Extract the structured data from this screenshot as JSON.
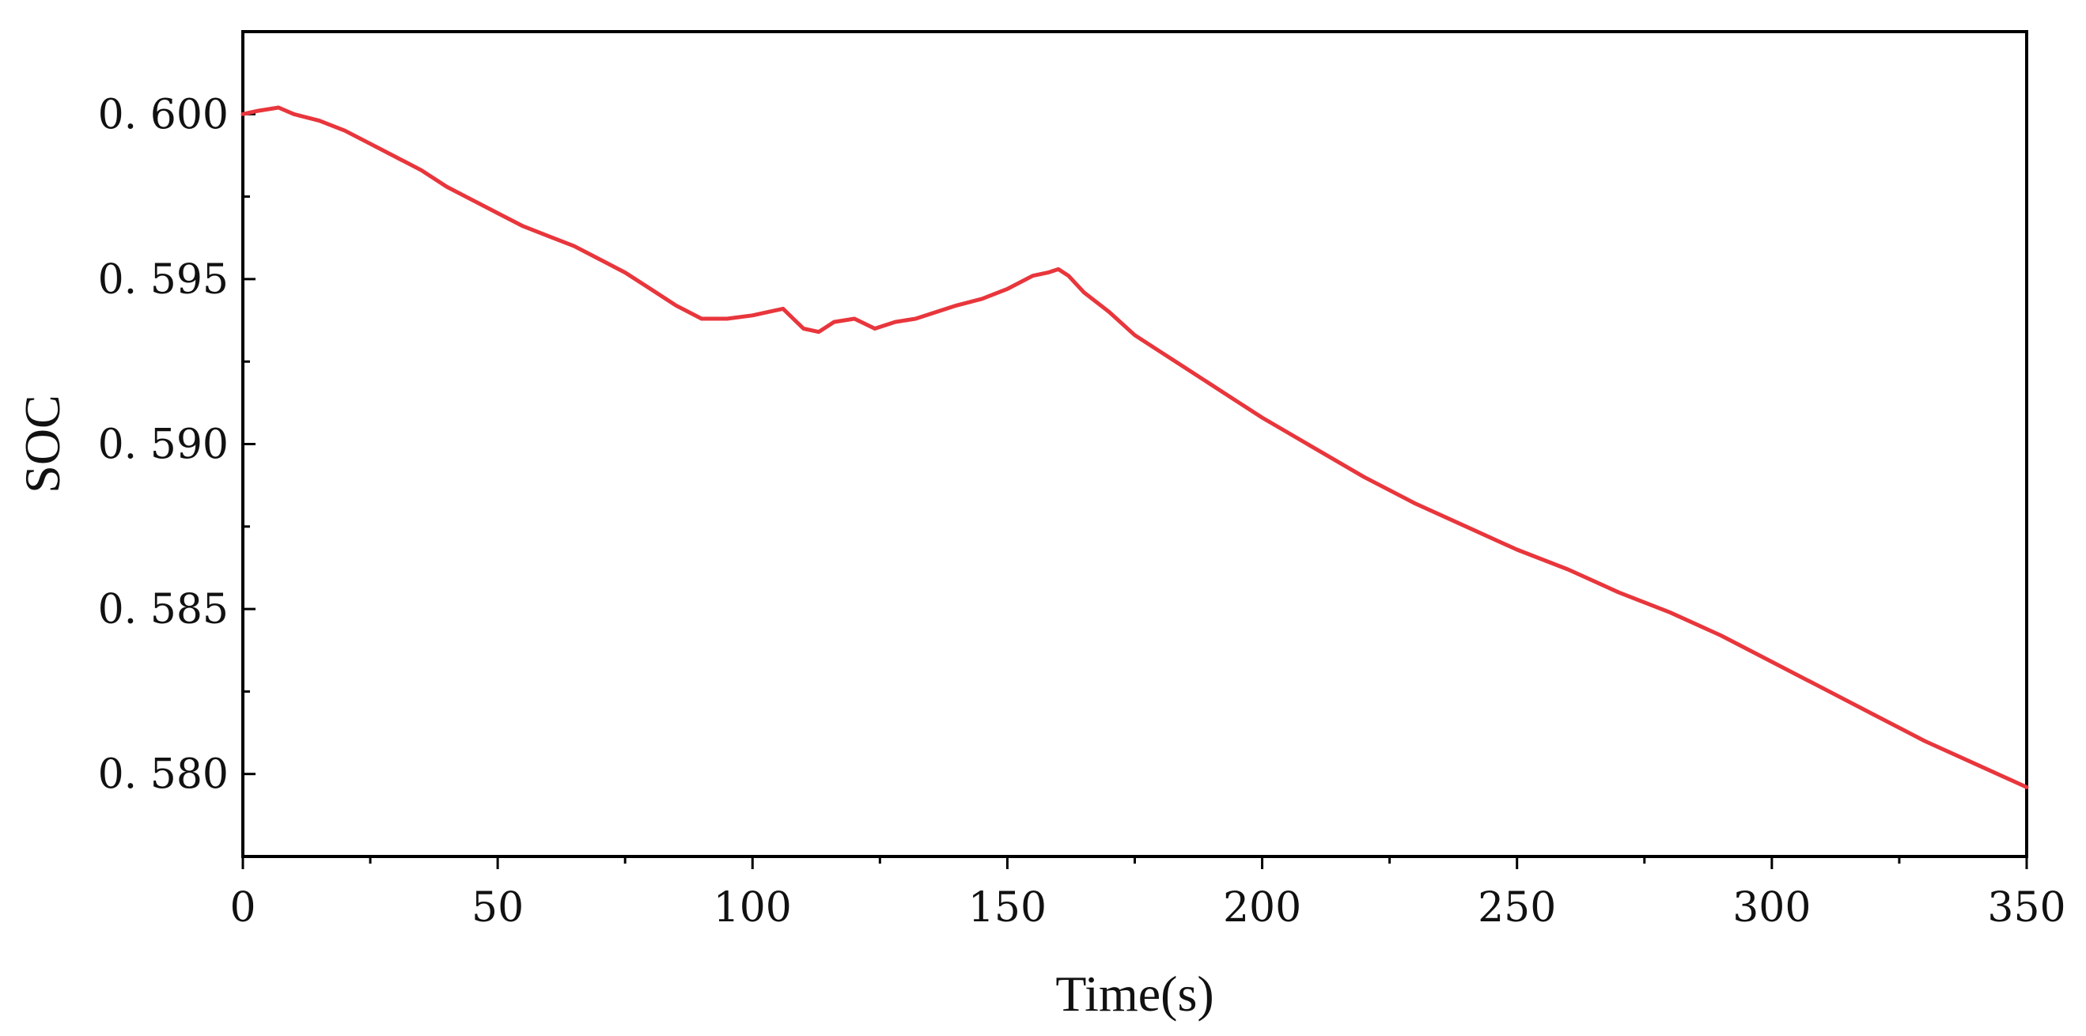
{
  "chart_data": {
    "type": "line",
    "title": "",
    "xlabel": "Time(s)",
    "ylabel": "SOC",
    "xlim": [
      0,
      350
    ],
    "ylim": [
      0.5775,
      0.6025
    ],
    "x_ticks": [
      0,
      50,
      100,
      150,
      200,
      250,
      300,
      350
    ],
    "x_tick_labels": [
      "0",
      "50",
      "100",
      "150",
      "200",
      "250",
      "300",
      "350"
    ],
    "y_ticks": [
      0.58,
      0.585,
      0.59,
      0.595,
      0.6
    ],
    "y_tick_labels": [
      "0. 580",
      "0. 585",
      "0. 590",
      "0. 595",
      "0. 600"
    ],
    "grid": false,
    "legend": "none",
    "series": [
      {
        "color": "#e8363c",
        "x": [
          0,
          3,
          7,
          10,
          15,
          20,
          25,
          30,
          35,
          40,
          45,
          50,
          55,
          60,
          65,
          70,
          75,
          80,
          85,
          90,
          95,
          100,
          103,
          106,
          108,
          110,
          113,
          116,
          120,
          124,
          128,
          132,
          136,
          140,
          145,
          150,
          155,
          158,
          160,
          162,
          165,
          170,
          175,
          180,
          185,
          190,
          195,
          200,
          210,
          220,
          230,
          240,
          250,
          260,
          270,
          280,
          290,
          300,
          310,
          320,
          330,
          340,
          350
        ],
        "y": [
          0.6,
          0.6001,
          0.6002,
          0.6,
          0.5998,
          0.5995,
          0.5991,
          0.5987,
          0.5983,
          0.5978,
          0.5974,
          0.597,
          0.5966,
          0.5963,
          0.596,
          0.5956,
          0.5952,
          0.5947,
          0.5942,
          0.5938,
          0.5938,
          0.5939,
          0.594,
          0.5941,
          0.5938,
          0.5935,
          0.5934,
          0.5937,
          0.5938,
          0.5935,
          0.5937,
          0.5938,
          0.594,
          0.5942,
          0.5944,
          0.5947,
          0.5951,
          0.5952,
          0.5953,
          0.5951,
          0.5946,
          0.594,
          0.5933,
          0.5928,
          0.5923,
          0.5918,
          0.5913,
          0.5908,
          0.5899,
          0.589,
          0.5882,
          0.5875,
          0.5868,
          0.5862,
          0.5855,
          0.5849,
          0.5842,
          0.5834,
          0.5826,
          0.5818,
          0.581,
          0.5803,
          0.5796
        ]
      }
    ]
  }
}
